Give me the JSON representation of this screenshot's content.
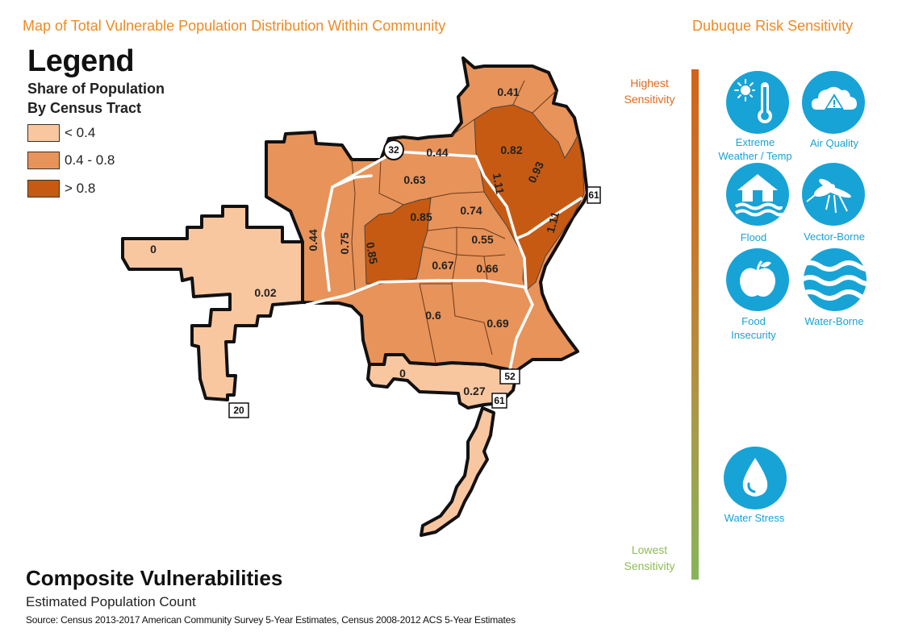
{
  "header": {
    "map_title": "Map of Total Vulnerable Population Distribution Within Community",
    "panel_title": "Dubuque Risk Sensitivity"
  },
  "legend": {
    "title": "Legend",
    "subtitle_line1": "Share of Population",
    "subtitle_line2": "By Census Tract",
    "items": [
      {
        "label": "< 0.4",
        "color": "#f8c7a0"
      },
      {
        "label": "0.4 - 0.8",
        "color": "#e8935a"
      },
      {
        "label": "> 0.8",
        "color": "#c75a12"
      }
    ]
  },
  "map": {
    "tract_values": [
      "0.41",
      "0.82",
      "0.93",
      "1.11",
      "1.11",
      "0.44",
      "0.63",
      "0.85",
      "0.74",
      "0.55",
      "0.85",
      "0.75",
      "0.44",
      "0.67",
      "0.66",
      "0",
      "0.02",
      "0.6",
      "0.69",
      "0",
      "0.27"
    ],
    "highway_labels": [
      "32",
      "61",
      "52",
      "61",
      "20"
    ]
  },
  "sensitivity": {
    "highest_line1": "Highest",
    "highest_line2": "Sensitivity",
    "lowest_line1": "Lowest",
    "lowest_line2": "Sensitivity",
    "icons": [
      {
        "name": "thermometer-sun-icon",
        "label_line1": "Extreme",
        "label_line2": "Weather / Temp"
      },
      {
        "name": "cloud-warning-icon",
        "label_line1": "Air Quality"
      },
      {
        "name": "house-flood-icon",
        "label_line1": "Flood"
      },
      {
        "name": "mosquito-icon",
        "label_line1": "Vector-Borne"
      },
      {
        "name": "apple-icon",
        "label_line1": "Food",
        "label_line2": "Insecurity"
      },
      {
        "name": "waves-icon",
        "label_line1": "Water-Borne"
      },
      {
        "name": "water-drop-icon",
        "label_line1": "Water Stress"
      }
    ]
  },
  "footer": {
    "title": "Composite Vulnerabilities",
    "subtitle": "Estimated Population Count",
    "source": "Source: Census 2013-2017 American Community Survey 5-Year Estimates, Census 2008-2012 ACS 5-Year Estimates"
  }
}
